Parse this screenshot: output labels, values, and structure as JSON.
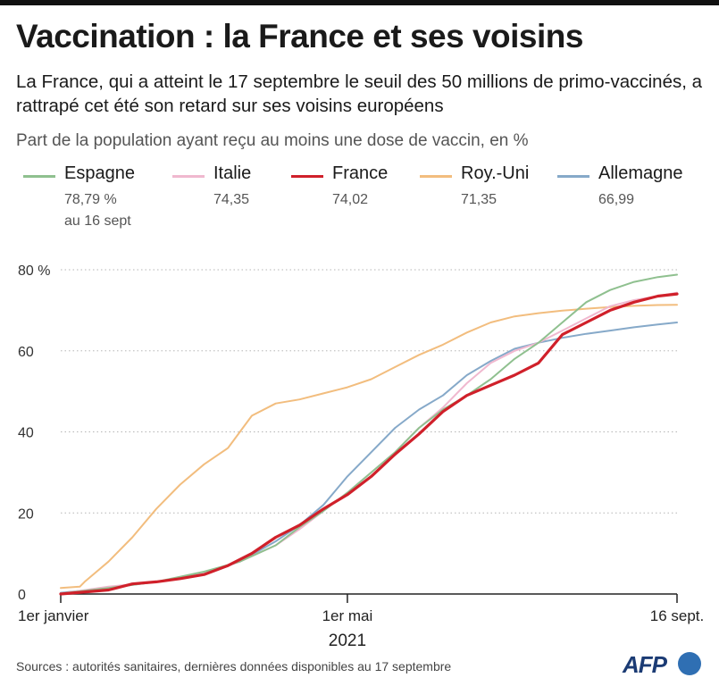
{
  "header": {
    "title": "Vaccination : la France et ses voisins",
    "subtitle": "La France, qui a atteint le 17 septembre le seuil des 50 millions de primo-vaccinés, a rattrapé cet été son retard sur ses voisins européens",
    "unit_label": "Part de la population ayant reçu au moins une dose de vaccin, en %"
  },
  "legend": [
    {
      "name": "Espagne",
      "value": "78,79 %",
      "note": "au 16 sept",
      "color": "#8fc08f"
    },
    {
      "name": "Italie",
      "value": "74,35",
      "color": "#f0b8cf"
    },
    {
      "name": "France",
      "value": "74,02",
      "color": "#d0202a"
    },
    {
      "name": "Roy.-Uni",
      "value": "71,35",
      "color": "#f2bd7e"
    },
    {
      "name": "Allemagne",
      "value": "66,99",
      "color": "#86a9c9"
    }
  ],
  "chart_data": {
    "type": "line",
    "x_unit": "days since 1 January 2021",
    "xlim": [
      0,
      258
    ],
    "ylim": [
      0,
      80
    ],
    "y_ticks": [
      0,
      20,
      40,
      60,
      80
    ],
    "y_tick_labels": [
      "0",
      "20",
      "40",
      "60",
      "80 %"
    ],
    "x_ticks": [
      {
        "value": 0,
        "label": "1er janvier"
      },
      {
        "value": 120,
        "label": "1er mai"
      },
      {
        "value": 258,
        "label": "16 sept."
      }
    ],
    "x_year_label": "2021",
    "grid": "horizontal dotted",
    "series": [
      {
        "name": "Roy.-Uni",
        "color": "#f2bd7e",
        "x": [
          0,
          8,
          10,
          20,
          30,
          40,
          50,
          60,
          70,
          80,
          90,
          100,
          110,
          120,
          130,
          140,
          150,
          160,
          170,
          180,
          190,
          200,
          210,
          220,
          230,
          240,
          250,
          258
        ],
        "y": [
          1.5,
          1.8,
          3,
          8,
          14,
          21,
          27,
          32,
          36,
          44,
          47,
          48,
          49.5,
          51,
          53,
          56,
          59,
          61.5,
          64.5,
          67,
          68.5,
          69.3,
          69.9,
          70.4,
          70.8,
          71.1,
          71.3,
          71.35
        ]
      },
      {
        "name": "Allemagne",
        "color": "#86a9c9",
        "x": [
          0,
          20,
          40,
          60,
          75,
          90,
          100,
          110,
          120,
          130,
          140,
          150,
          160,
          170,
          180,
          190,
          200,
          210,
          220,
          230,
          240,
          250,
          258
        ],
        "y": [
          0.3,
          1.5,
          3,
          5,
          8,
          13,
          17,
          22,
          29,
          35,
          41,
          45.5,
          49,
          54,
          57.5,
          60.5,
          62,
          63.2,
          64.2,
          65,
          65.8,
          66.5,
          66.99
        ]
      },
      {
        "name": "Italie",
        "color": "#f0b8cf",
        "x": [
          0,
          20,
          40,
          60,
          75,
          90,
          100,
          110,
          120,
          130,
          140,
          150,
          160,
          170,
          180,
          190,
          200,
          210,
          220,
          230,
          240,
          250,
          258
        ],
        "y": [
          0.1,
          1.8,
          3,
          5,
          8,
          12,
          16,
          20.5,
          25,
          30,
          35,
          41,
          46,
          52,
          57,
          60,
          62,
          65,
          68,
          71,
          72.5,
          73.5,
          74.35
        ]
      },
      {
        "name": "Espagne",
        "color": "#8fc08f",
        "x": [
          0,
          20,
          40,
          60,
          75,
          90,
          100,
          110,
          120,
          130,
          140,
          150,
          160,
          170,
          180,
          190,
          200,
          210,
          220,
          230,
          240,
          250,
          258
        ],
        "y": [
          0.1,
          1.5,
          3,
          5.5,
          8,
          12,
          16.5,
          20.5,
          25,
          30,
          35,
          41,
          45.5,
          49,
          53,
          58,
          62,
          67,
          72,
          75,
          77,
          78.2,
          78.79
        ]
      },
      {
        "name": "France",
        "color": "#d0202a",
        "x": [
          0,
          20,
          30,
          40,
          50,
          60,
          70,
          80,
          90,
          100,
          110,
          120,
          130,
          140,
          150,
          160,
          170,
          180,
          190,
          200,
          210,
          220,
          230,
          240,
          250,
          258
        ],
        "y": [
          0,
          1,
          2.5,
          3,
          3.8,
          4.8,
          7,
          10,
          14,
          17,
          21,
          24.5,
          29,
          34.5,
          39.5,
          45,
          49,
          51.5,
          54,
          57,
          64,
          67,
          70,
          72,
          73.5,
          74.02
        ]
      }
    ]
  },
  "footer": {
    "source": "Sources : autorités sanitaires, dernières données disponibles au 17 septembre",
    "logo": "AFP"
  }
}
